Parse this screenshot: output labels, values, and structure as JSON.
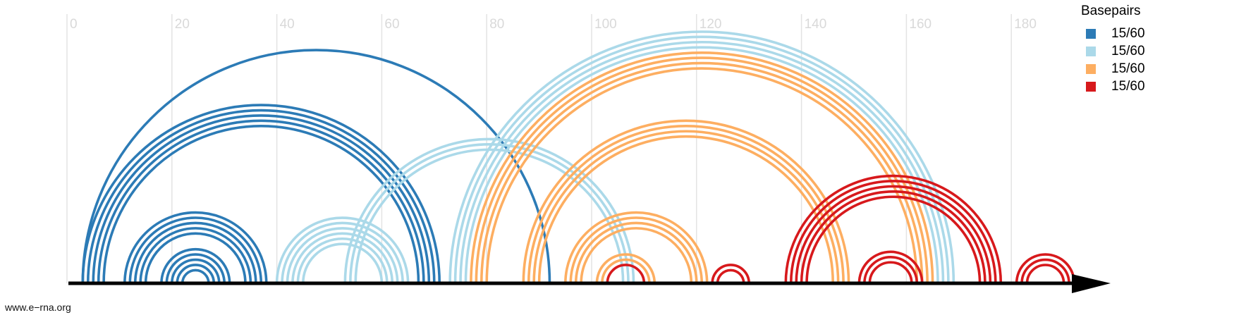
{
  "chart_data": {
    "type": "arc-diagram",
    "x_ticks": [
      "0",
      "20",
      "40",
      "60",
      "80",
      "100",
      "120",
      "140",
      "160",
      "180"
    ],
    "xlim": [
      0,
      200
    ],
    "grid": true,
    "legend": {
      "title": "Basepairs",
      "placement": "top-right",
      "entries": [
        {
          "label": "15/60",
          "color": "#2c7bb6"
        },
        {
          "label": "15/60",
          "color": "#abd9e9"
        },
        {
          "label": "15/60",
          "color": "#fdae61"
        },
        {
          "label": "15/60",
          "color": "#d7191c"
        }
      ]
    },
    "arcs": [
      {
        "color": "#2c7bb6",
        "i": 3,
        "j": 92
      },
      {
        "color": "#2c7bb6",
        "i": 3,
        "j": 71
      },
      {
        "color": "#2c7bb6",
        "i": 4,
        "j": 70
      },
      {
        "color": "#2c7bb6",
        "i": 5,
        "j": 69
      },
      {
        "color": "#2c7bb6",
        "i": 6,
        "j": 68
      },
      {
        "color": "#2c7bb6",
        "i": 7,
        "j": 67
      },
      {
        "color": "#2c7bb6",
        "i": 11,
        "j": 38
      },
      {
        "color": "#2c7bb6",
        "i": 12,
        "j": 37
      },
      {
        "color": "#2c7bb6",
        "i": 13,
        "j": 36
      },
      {
        "color": "#2c7bb6",
        "i": 14,
        "j": 35
      },
      {
        "color": "#2c7bb6",
        "i": 15,
        "j": 34
      },
      {
        "color": "#2c7bb6",
        "i": 18,
        "j": 31
      },
      {
        "color": "#2c7bb6",
        "i": 19,
        "j": 30
      },
      {
        "color": "#2c7bb6",
        "i": 20,
        "j": 29
      },
      {
        "color": "#2c7bb6",
        "i": 21,
        "j": 28
      },
      {
        "color": "#2c7bb6",
        "i": 22,
        "j": 27
      },
      {
        "color": "#abd9e9",
        "i": 40,
        "j": 65
      },
      {
        "color": "#abd9e9",
        "i": 41,
        "j": 64
      },
      {
        "color": "#abd9e9",
        "i": 42,
        "j": 63
      },
      {
        "color": "#abd9e9",
        "i": 43,
        "j": 62
      },
      {
        "color": "#abd9e9",
        "i": 44,
        "j": 61
      },
      {
        "color": "#abd9e9",
        "i": 45,
        "j": 60
      },
      {
        "color": "#abd9e9",
        "i": 53,
        "j": 108
      },
      {
        "color": "#abd9e9",
        "i": 54,
        "j": 107
      },
      {
        "color": "#abd9e9",
        "i": 55,
        "j": 106
      },
      {
        "color": "#abd9e9",
        "i": 73,
        "j": 169
      },
      {
        "color": "#abd9e9",
        "i": 74,
        "j": 168
      },
      {
        "color": "#abd9e9",
        "i": 75,
        "j": 167
      },
      {
        "color": "#abd9e9",
        "i": 76,
        "j": 166
      },
      {
        "color": "#fdae61",
        "i": 77,
        "j": 165
      },
      {
        "color": "#fdae61",
        "i": 78,
        "j": 164
      },
      {
        "color": "#fdae61",
        "i": 79,
        "j": 163
      },
      {
        "color": "#fdae61",
        "i": 80,
        "j": 162
      },
      {
        "color": "#fdae61",
        "i": 87,
        "j": 149
      },
      {
        "color": "#fdae61",
        "i": 88,
        "j": 148
      },
      {
        "color": "#fdae61",
        "i": 89,
        "j": 147
      },
      {
        "color": "#fdae61",
        "i": 90,
        "j": 146
      },
      {
        "color": "#fdae61",
        "i": 95,
        "j": 122
      },
      {
        "color": "#fdae61",
        "i": 96,
        "j": 121
      },
      {
        "color": "#fdae61",
        "i": 97,
        "j": 120
      },
      {
        "color": "#fdae61",
        "i": 98,
        "j": 119
      },
      {
        "color": "#fdae61",
        "i": 101,
        "j": 112
      },
      {
        "color": "#fdae61",
        "i": 102,
        "j": 111
      },
      {
        "color": "#d7191c",
        "i": 103,
        "j": 110
      },
      {
        "color": "#d7191c",
        "i": 123,
        "j": 130
      },
      {
        "color": "#d7191c",
        "i": 124,
        "j": 129
      },
      {
        "color": "#d7191c",
        "i": 137,
        "j": 178
      },
      {
        "color": "#d7191c",
        "i": 138,
        "j": 177
      },
      {
        "color": "#d7191c",
        "i": 139,
        "j": 176
      },
      {
        "color": "#d7191c",
        "i": 140,
        "j": 175
      },
      {
        "color": "#d7191c",
        "i": 141,
        "j": 174
      },
      {
        "color": "#d7191c",
        "i": 151,
        "j": 163
      },
      {
        "color": "#d7191c",
        "i": 152,
        "j": 162
      },
      {
        "color": "#d7191c",
        "i": 153,
        "j": 161
      },
      {
        "color": "#d7191c",
        "i": 181,
        "j": 192
      },
      {
        "color": "#d7191c",
        "i": 182,
        "j": 191
      },
      {
        "color": "#d7191c",
        "i": 183,
        "j": 190
      }
    ]
  },
  "watermark": "www.e−rna.org"
}
